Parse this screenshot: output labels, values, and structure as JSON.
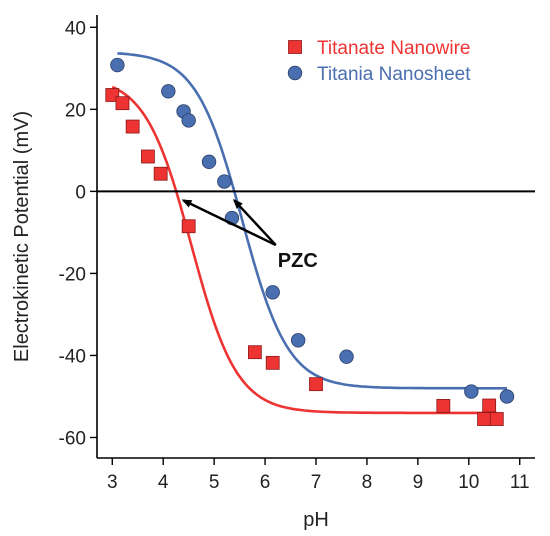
{
  "chart_data": {
    "type": "scatter",
    "title": "",
    "xlabel": "pH",
    "ylabel": "Electrokinetic Potential (mV)",
    "xlim": [
      2.7,
      11.3
    ],
    "ylim": [
      -65,
      43
    ],
    "xticks": [
      3,
      4,
      5,
      6,
      7,
      8,
      9,
      10,
      11
    ],
    "yticks": [
      40,
      20,
      0,
      -20,
      -40,
      -60
    ],
    "grid": false,
    "zero_line": true,
    "legend_position": "top-right",
    "series": [
      {
        "name": "Titanate Nanowire",
        "marker": "square",
        "color": "#ee3333",
        "x": [
          3.0,
          3.2,
          3.4,
          3.7,
          3.95,
          4.5,
          5.8,
          6.15,
          7.0,
          9.5,
          10.3,
          10.4,
          10.55
        ],
        "y": [
          23.5,
          21.5,
          15.8,
          8.5,
          4.3,
          -8.5,
          -39.2,
          -41.8,
          -47.0,
          -52.3,
          -55.5,
          -52.2,
          -55.5
        ],
        "fit": {
          "top": 28,
          "bottom": -54,
          "midpoint": 4.55,
          "slope": 0.45
        }
      },
      {
        "name": "Titania Nanosheet",
        "marker": "circle",
        "color": "#4a6fb0",
        "x": [
          3.1,
          4.1,
          4.4,
          4.5,
          4.9,
          5.2,
          5.35,
          6.15,
          6.65,
          7.6,
          10.05,
          10.75
        ],
        "y": [
          30.8,
          24.4,
          19.5,
          17.3,
          7.2,
          2.4,
          -6.5,
          -24.6,
          -36.3,
          -40.3,
          -48.8,
          -50.0
        ],
        "fit": {
          "top": 34,
          "bottom": -48,
          "midpoint": 5.55,
          "slope": 0.45
        }
      }
    ],
    "annotations": [
      {
        "text": "PZC",
        "x": 6.25,
        "y": -16.5,
        "arrows_to": [
          [
            4.2,
            0
          ],
          [
            5.2,
            0
          ]
        ]
      }
    ]
  }
}
